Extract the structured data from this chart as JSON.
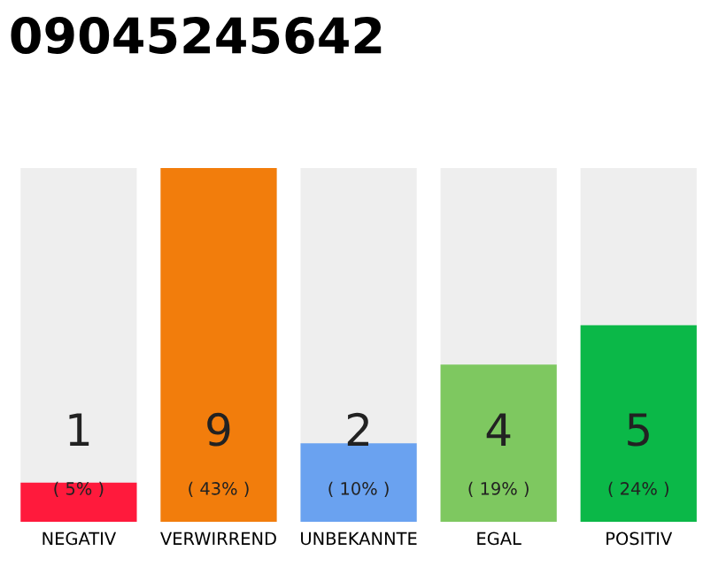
{
  "chart_data": {
    "type": "bar",
    "title": "09045245642",
    "categories": [
      "NEGATIV",
      "VERWIRREND",
      "UNBEKANNTE",
      "EGAL",
      "POSITIV"
    ],
    "values": [
      1,
      9,
      2,
      4,
      5
    ],
    "colors": [
      "#ff1a3c",
      "#f27d0c",
      "#6aa2f0",
      "#7ec860",
      "#0bb848"
    ],
    "data_labels": true,
    "annotations": [
      "( 5% )",
      "( 43% )",
      "( 10% )",
      "( 19% )",
      "( 24% )"
    ],
    "grid": false,
    "legend": false
  }
}
